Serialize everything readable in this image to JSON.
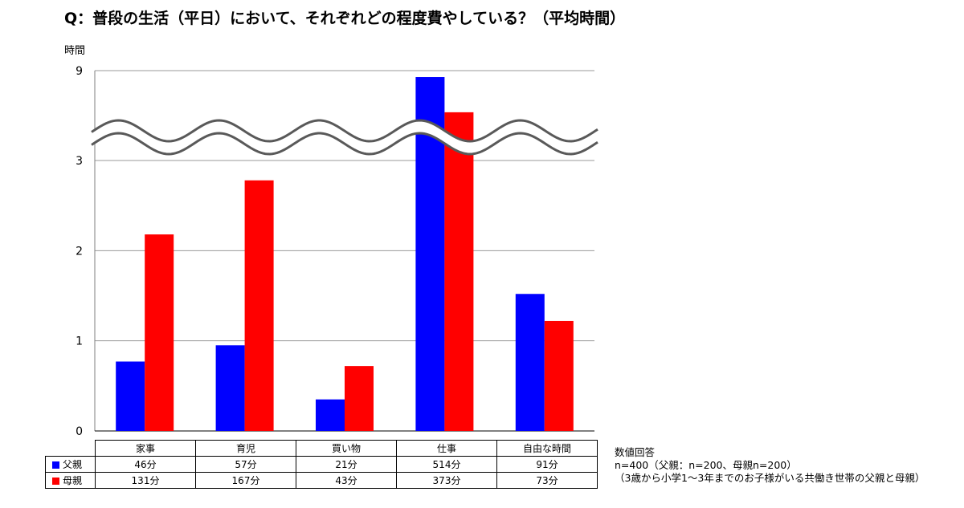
{
  "title": "Q：普段の生活（平日）において、それぞれどの程度費やしている？（平均時間）",
  "notes": {
    "line1": "数値回答",
    "line2": "n=400（父親：n=200、母親n=200）",
    "line3": "（3歳から小学1～3年までのお子様がいる共働き世帯の父親と母親）"
  },
  "table": {
    "rows": [
      {
        "label": "父親",
        "color": "#0000ff",
        "values": [
          "46分",
          "57分",
          "21分",
          "514分",
          "91分"
        ]
      },
      {
        "label": "母親",
        "color": "#ff0000",
        "values": [
          "131分",
          "167分",
          "43分",
          "373分",
          "73分"
        ]
      }
    ]
  },
  "chart_data": {
    "type": "bar",
    "ylabel": "時間",
    "yticks": [
      "0",
      "1",
      "2",
      "3",
      "9"
    ],
    "y_axis_break": {
      "between": [
        3,
        9
      ]
    },
    "ylim": [
      0,
      9
    ],
    "grid": true,
    "categories": [
      "家事",
      "育児",
      "買い物",
      "仕事",
      "自由な時間"
    ],
    "series": [
      {
        "name": "父親",
        "color": "#0000ff",
        "values": [
          0.77,
          0.95,
          0.35,
          8.57,
          1.52
        ]
      },
      {
        "name": "母親",
        "color": "#ff0000",
        "values": [
          2.18,
          2.78,
          0.72,
          6.22,
          1.22
        ]
      }
    ]
  }
}
